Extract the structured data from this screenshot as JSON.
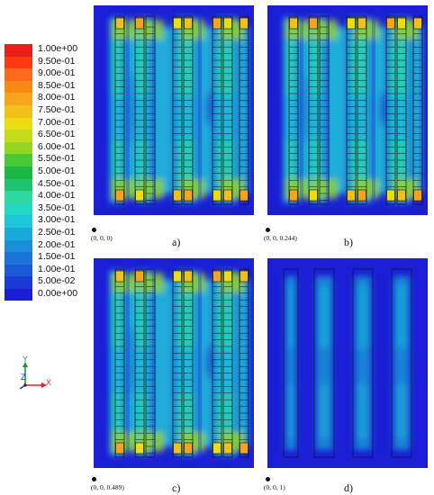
{
  "legend": {
    "labels": [
      "1.00e+00",
      "9.50e-01",
      "9.00e-01",
      "8.50e-01",
      "8.00e-01",
      "7.50e-01",
      "7.00e-01",
      "6.50e-01",
      "6.00e-01",
      "5.50e-01",
      "5.00e-01",
      "4.50e-01",
      "4.00e-01",
      "3.50e-01",
      "3.00e-01",
      "2.50e-01",
      "2.00e-01",
      "1.50e-01",
      "1.00e-01",
      "5.00e-02",
      "0.00e+00"
    ],
    "colors": [
      "#e8201c",
      "#ff3a10",
      "#ff6a1e",
      "#f88a14",
      "#f7a41c",
      "#f2c01a",
      "#eedc12",
      "#c4dc1a",
      "#95d622",
      "#49c837",
      "#1ab843",
      "#1ec46d",
      "#2ed8a1",
      "#24d8c4",
      "#1ec6d9",
      "#1aa9d9",
      "#1a8ed6",
      "#1a75d6",
      "#1a5ad6",
      "#1a3bd6",
      "#1a1fd6"
    ]
  },
  "triad": {
    "y": "Y",
    "z": "Z",
    "x": "X"
  },
  "panels": [
    {
      "letter": "a)",
      "coord": "(0, 0, 0)",
      "intensity": 1.0
    },
    {
      "letter": "b)",
      "coord": "(0, 0, 0.244)",
      "intensity": 0.95
    },
    {
      "letter": "c)",
      "coord": "(0, 0, 0.489)",
      "intensity": 0.85
    },
    {
      "letter": "d)",
      "coord": "(0, 0, 1)",
      "intensity": 0.35
    }
  ]
}
